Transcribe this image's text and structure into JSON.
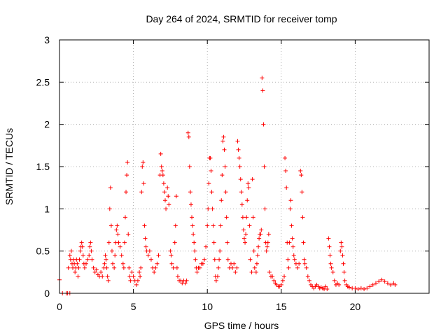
{
  "chart_data": {
    "type": "scatter",
    "title": "Day 264 of 2024, SRMTID for receiver tomp",
    "xlabel": "GPS time / hours",
    "ylabel": "SRMTID / TECUs",
    "xlim": [
      0,
      25
    ],
    "ylim": [
      0,
      3
    ],
    "x_ticks": [
      0,
      5,
      10,
      15,
      20
    ],
    "y_ticks": [
      0,
      0.5,
      1,
      1.5,
      2,
      2.5,
      3
    ],
    "grid": true,
    "marker": "+",
    "series_color": "#ff0000",
    "series": [
      {
        "name": "SRMTID",
        "points": [
          [
            0.0,
            0.16
          ],
          [
            0.2,
            0.0
          ],
          [
            0.45,
            0.0
          ],
          [
            0.55,
            0.0
          ],
          [
            0.7,
            0.0
          ],
          [
            0.6,
            0.3
          ],
          [
            0.7,
            0.45
          ],
          [
            0.75,
            0.4
          ],
          [
            0.8,
            0.5
          ],
          [
            0.85,
            0.35
          ],
          [
            0.9,
            0.3
          ],
          [
            0.95,
            0.4
          ],
          [
            1.0,
            0.35
          ],
          [
            1.05,
            0.25
          ],
          [
            1.1,
            0.3
          ],
          [
            1.15,
            0.4
          ],
          [
            1.2,
            0.35
          ],
          [
            1.25,
            0.2
          ],
          [
            1.3,
            0.3
          ],
          [
            1.35,
            0.4
          ],
          [
            1.4,
            0.5
          ],
          [
            1.45,
            0.55
          ],
          [
            1.5,
            0.6
          ],
          [
            1.55,
            0.55
          ],
          [
            1.6,
            0.45
          ],
          [
            1.65,
            0.35
          ],
          [
            1.7,
            0.3
          ],
          [
            1.8,
            0.35
          ],
          [
            1.9,
            0.4
          ],
          [
            2.0,
            0.45
          ],
          [
            2.05,
            0.55
          ],
          [
            2.1,
            0.6
          ],
          [
            2.15,
            0.5
          ],
          [
            2.2,
            0.4
          ],
          [
            2.3,
            0.3
          ],
          [
            2.4,
            0.25
          ],
          [
            2.5,
            0.28
          ],
          [
            2.6,
            0.22
          ],
          [
            2.7,
            0.2
          ],
          [
            2.8,
            0.25
          ],
          [
            2.9,
            0.2
          ],
          [
            3.0,
            0.3
          ],
          [
            3.05,
            0.35
          ],
          [
            3.1,
            0.45
          ],
          [
            3.15,
            0.4
          ],
          [
            3.2,
            0.3
          ],
          [
            3.25,
            0.2
          ],
          [
            3.3,
            0.15
          ],
          [
            3.35,
            0.6
          ],
          [
            3.4,
            1.0
          ],
          [
            3.45,
            1.25
          ],
          [
            3.5,
            0.8
          ],
          [
            3.55,
            0.5
          ],
          [
            3.6,
            0.35
          ],
          [
            3.7,
            0.3
          ],
          [
            3.75,
            0.45
          ],
          [
            3.8,
            0.6
          ],
          [
            3.85,
            0.75
          ],
          [
            3.9,
            0.8
          ],
          [
            3.95,
            0.7
          ],
          [
            4.0,
            0.6
          ],
          [
            4.1,
            0.55
          ],
          [
            4.2,
            0.45
          ],
          [
            4.3,
            0.35
          ],
          [
            4.35,
            0.3
          ],
          [
            4.4,
            0.6
          ],
          [
            4.45,
            0.9
          ],
          [
            4.5,
            1.2
          ],
          [
            4.55,
            1.4
          ],
          [
            4.6,
            1.55
          ],
          [
            4.65,
            0.7
          ],
          [
            4.7,
            0.3
          ],
          [
            4.75,
            0.2
          ],
          [
            4.8,
            0.15
          ],
          [
            4.9,
            0.25
          ],
          [
            5.0,
            0.2
          ],
          [
            5.1,
            0.15
          ],
          [
            5.2,
            0.1
          ],
          [
            5.3,
            0.15
          ],
          [
            5.4,
            0.25
          ],
          [
            5.45,
            0.2
          ],
          [
            5.5,
            0.3
          ],
          [
            5.55,
            1.2
          ],
          [
            5.6,
            1.5
          ],
          [
            5.65,
            1.55
          ],
          [
            5.7,
            1.3
          ],
          [
            5.75,
            0.8
          ],
          [
            5.8,
            0.65
          ],
          [
            5.85,
            0.55
          ],
          [
            5.9,
            0.5
          ],
          [
            6.0,
            0.45
          ],
          [
            6.1,
            0.5
          ],
          [
            6.2,
            0.4
          ],
          [
            6.3,
            0.3
          ],
          [
            6.4,
            0.25
          ],
          [
            6.5,
            0.3
          ],
          [
            6.6,
            0.35
          ],
          [
            6.7,
            0.45
          ],
          [
            6.8,
            1.4
          ],
          [
            6.85,
            1.65
          ],
          [
            6.9,
            1.5
          ],
          [
            6.95,
            1.45
          ],
          [
            7.0,
            1.4
          ],
          [
            7.05,
            1.3
          ],
          [
            7.1,
            1.2
          ],
          [
            7.15,
            1.1
          ],
          [
            7.2,
            1.0
          ],
          [
            7.3,
            1.25
          ],
          [
            7.35,
            1.15
          ],
          [
            7.4,
            1.05
          ],
          [
            7.5,
            0.5
          ],
          [
            7.55,
            0.45
          ],
          [
            7.6,
            0.35
          ],
          [
            7.7,
            0.3
          ],
          [
            7.8,
            0.6
          ],
          [
            7.85,
            0.8
          ],
          [
            7.9,
            1.15
          ],
          [
            7.95,
            0.3
          ],
          [
            8.0,
            0.2
          ],
          [
            8.1,
            0.15
          ],
          [
            8.2,
            0.15
          ],
          [
            8.3,
            0.12
          ],
          [
            8.4,
            0.15
          ],
          [
            8.5,
            0.12
          ],
          [
            8.6,
            0.15
          ],
          [
            8.7,
            1.9
          ],
          [
            8.75,
            1.85
          ],
          [
            8.8,
            1.5
          ],
          [
            8.85,
            1.2
          ],
          [
            8.9,
            1.05
          ],
          [
            8.95,
            0.9
          ],
          [
            9.0,
            0.8
          ],
          [
            9.05,
            0.7
          ],
          [
            9.1,
            0.6
          ],
          [
            9.15,
            0.5
          ],
          [
            9.2,
            0.4
          ],
          [
            9.25,
            0.3
          ],
          [
            9.3,
            0.25
          ],
          [
            9.4,
            0.3
          ],
          [
            9.5,
            0.3
          ],
          [
            9.6,
            0.35
          ],
          [
            9.7,
            0.35
          ],
          [
            9.8,
            0.4
          ],
          [
            9.9,
            0.55
          ],
          [
            10.0,
            0.8
          ],
          [
            10.05,
            1.0
          ],
          [
            10.1,
            1.3
          ],
          [
            10.15,
            1.6
          ],
          [
            10.2,
            1.6
          ],
          [
            10.25,
            1.45
          ],
          [
            10.3,
            1.2
          ],
          [
            10.35,
            1.0
          ],
          [
            10.4,
            0.8
          ],
          [
            10.45,
            0.6
          ],
          [
            10.5,
            0.4
          ],
          [
            10.55,
            0.2
          ],
          [
            10.6,
            0.15
          ],
          [
            10.7,
            0.2
          ],
          [
            10.75,
            0.3
          ],
          [
            10.8,
            0.4
          ],
          [
            10.85,
            0.5
          ],
          [
            10.9,
            0.8
          ],
          [
            10.95,
            1.1
          ],
          [
            11.0,
            1.4
          ],
          [
            11.05,
            1.8
          ],
          [
            11.1,
            1.85
          ],
          [
            11.15,
            1.7
          ],
          [
            11.2,
            1.5
          ],
          [
            11.25,
            1.2
          ],
          [
            11.3,
            0.9
          ],
          [
            11.35,
            0.6
          ],
          [
            11.4,
            0.4
          ],
          [
            11.5,
            0.3
          ],
          [
            11.6,
            0.35
          ],
          [
            11.7,
            0.3
          ],
          [
            11.8,
            0.35
          ],
          [
            11.9,
            0.25
          ],
          [
            12.0,
            0.3
          ],
          [
            12.05,
            1.8
          ],
          [
            12.1,
            1.7
          ],
          [
            12.15,
            1.6
          ],
          [
            12.2,
            1.5
          ],
          [
            12.25,
            1.35
          ],
          [
            12.3,
            1.2
          ],
          [
            12.35,
            1.05
          ],
          [
            12.4,
            0.9
          ],
          [
            12.45,
            0.75
          ],
          [
            12.5,
            0.65
          ],
          [
            12.55,
            0.6
          ],
          [
            12.6,
            0.7
          ],
          [
            12.65,
            0.9
          ],
          [
            12.7,
            1.1
          ],
          [
            12.75,
            1.3
          ],
          [
            12.8,
            1.25
          ],
          [
            12.85,
            0.8
          ],
          [
            12.9,
            0.4
          ],
          [
            13.0,
            0.25
          ],
          [
            13.05,
            1.35
          ],
          [
            13.1,
            0.9
          ],
          [
            13.15,
            0.5
          ],
          [
            13.2,
            0.3
          ],
          [
            13.3,
            0.25
          ],
          [
            13.35,
            0.35
          ],
          [
            13.4,
            0.45
          ],
          [
            13.45,
            0.55
          ],
          [
            13.5,
            0.65
          ],
          [
            13.55,
            0.7
          ],
          [
            13.6,
            0.7
          ],
          [
            13.65,
            0.75
          ],
          [
            13.7,
            2.55
          ],
          [
            13.75,
            2.4
          ],
          [
            13.8,
            2.0
          ],
          [
            13.85,
            1.5
          ],
          [
            13.9,
            1.0
          ],
          [
            13.95,
            0.6
          ],
          [
            14.0,
            0.5
          ],
          [
            14.05,
            0.55
          ],
          [
            14.1,
            0.6
          ],
          [
            14.15,
            0.7
          ],
          [
            14.2,
            0.25
          ],
          [
            14.3,
            0.2
          ],
          [
            14.4,
            0.2
          ],
          [
            14.5,
            0.15
          ],
          [
            14.6,
            0.12
          ],
          [
            14.7,
            0.1
          ],
          [
            14.8,
            0.08
          ],
          [
            14.9,
            0.08
          ],
          [
            15.0,
            0.1
          ],
          [
            15.1,
            0.15
          ],
          [
            15.2,
            0.2
          ],
          [
            15.25,
            1.6
          ],
          [
            15.3,
            1.45
          ],
          [
            15.35,
            1.25
          ],
          [
            15.4,
            0.6
          ],
          [
            15.45,
            0.4
          ],
          [
            15.5,
            0.3
          ],
          [
            15.55,
            0.6
          ],
          [
            15.6,
            1.0
          ],
          [
            15.65,
            1.1
          ],
          [
            15.7,
            0.8
          ],
          [
            15.75,
            0.65
          ],
          [
            15.8,
            0.55
          ],
          [
            15.85,
            0.45
          ],
          [
            15.9,
            0.4
          ],
          [
            16.0,
            0.35
          ],
          [
            16.1,
            0.3
          ],
          [
            16.2,
            0.35
          ],
          [
            16.3,
            1.45
          ],
          [
            16.35,
            1.4
          ],
          [
            16.4,
            1.2
          ],
          [
            16.45,
            0.9
          ],
          [
            16.5,
            0.6
          ],
          [
            16.55,
            0.4
          ],
          [
            16.6,
            0.35
          ],
          [
            16.7,
            0.3
          ],
          [
            16.8,
            0.2
          ],
          [
            16.9,
            0.15
          ],
          [
            17.0,
            0.1
          ],
          [
            17.1,
            0.08
          ],
          [
            17.2,
            0.06
          ],
          [
            17.3,
            0.08
          ],
          [
            17.4,
            0.1
          ],
          [
            17.5,
            0.08
          ],
          [
            17.6,
            0.06
          ],
          [
            17.7,
            0.07
          ],
          [
            17.8,
            0.06
          ],
          [
            17.9,
            0.05
          ],
          [
            18.0,
            0.08
          ],
          [
            18.1,
            0.05
          ],
          [
            18.2,
            0.65
          ],
          [
            18.25,
            0.55
          ],
          [
            18.3,
            0.45
          ],
          [
            18.35,
            0.35
          ],
          [
            18.4,
            0.3
          ],
          [
            18.5,
            0.25
          ],
          [
            18.6,
            0.15
          ],
          [
            18.7,
            0.1
          ],
          [
            18.8,
            0.12
          ],
          [
            18.9,
            0.1
          ],
          [
            19.0,
            0.5
          ],
          [
            19.05,
            0.6
          ],
          [
            19.1,
            0.55
          ],
          [
            19.15,
            0.45
          ],
          [
            19.2,
            0.35
          ],
          [
            19.25,
            0.25
          ],
          [
            19.3,
            0.15
          ],
          [
            19.4,
            0.1
          ],
          [
            19.5,
            0.08
          ],
          [
            19.6,
            0.07
          ],
          [
            19.8,
            0.06
          ],
          [
            20.0,
            0.06
          ],
          [
            20.2,
            0.05
          ],
          [
            20.4,
            0.06
          ],
          [
            20.6,
            0.05
          ],
          [
            20.8,
            0.06
          ],
          [
            21.0,
            0.08
          ],
          [
            21.2,
            0.1
          ],
          [
            21.4,
            0.12
          ],
          [
            21.6,
            0.14
          ],
          [
            21.8,
            0.16
          ],
          [
            22.0,
            0.14
          ],
          [
            22.2,
            0.12
          ],
          [
            22.4,
            0.1
          ],
          [
            22.6,
            0.12
          ],
          [
            22.7,
            0.1
          ]
        ]
      }
    ]
  }
}
